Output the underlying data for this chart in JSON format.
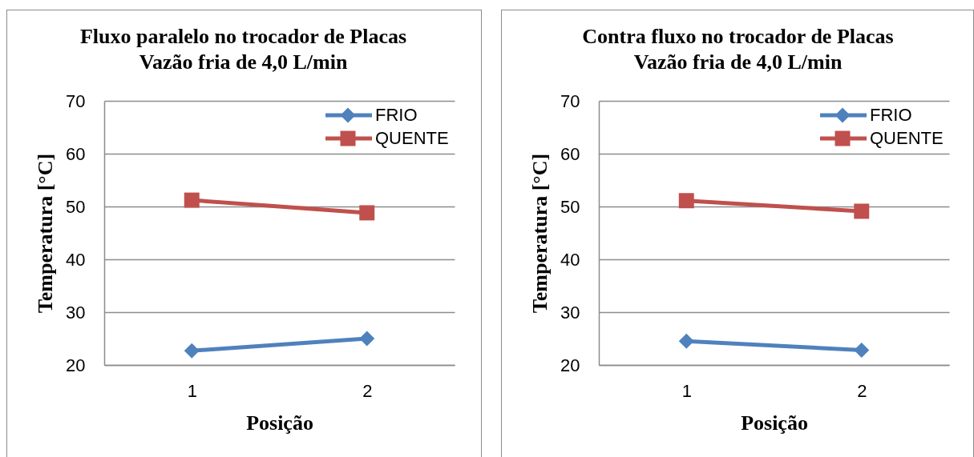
{
  "chart_data": [
    {
      "type": "line",
      "title": "Fluxo paralelo no trocador de Placas\nVazão fria de 4,0 L/min",
      "xlabel": "Posição",
      "ylabel": "Temperatura [°C]",
      "categories": [
        "1",
        "2"
      ],
      "series": [
        {
          "name": "FRIO",
          "color": "#4f81bd",
          "marker": "diamond",
          "values": [
            22.7,
            25.0
          ]
        },
        {
          "name": "QUENTE",
          "color": "#c0504d",
          "marker": "square",
          "values": [
            51.2,
            48.8
          ]
        }
      ],
      "ylim": [
        20,
        70
      ],
      "yticks": [
        20,
        30,
        40,
        50,
        60,
        70
      ],
      "grid": "y",
      "legend": "top right",
      "line_style": "solid"
    },
    {
      "type": "line",
      "title": "Contra fluxo no trocador de Placas\nVazão fria de 4,0 L/min",
      "xlabel": "Posição",
      "ylabel": "Temperatura [°C]",
      "categories": [
        "1",
        "2"
      ],
      "series": [
        {
          "name": "FRIO",
          "color": "#4f81bd",
          "marker": "diamond",
          "values": [
            24.5,
            22.8
          ]
        },
        {
          "name": "QUENTE",
          "color": "#c0504d",
          "marker": "square",
          "values": [
            51.1,
            49.1
          ]
        }
      ],
      "ylim": [
        20,
        70
      ],
      "yticks": [
        20,
        30,
        40,
        50,
        60,
        70
      ],
      "grid": "y",
      "legend": "top right",
      "line_style": "solid"
    }
  ]
}
